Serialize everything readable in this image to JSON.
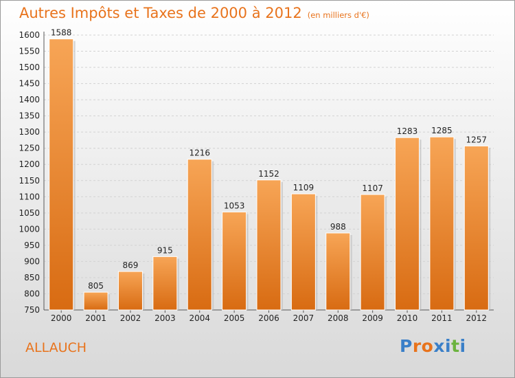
{
  "chart_data": {
    "type": "bar",
    "title": "Autres Impôts et Taxes de 2000 à 2012",
    "unit_label": "(en milliers d'€)",
    "categories": [
      "2000",
      "2001",
      "2002",
      "2003",
      "2004",
      "2005",
      "2006",
      "2007",
      "2008",
      "2009",
      "2010",
      "2011",
      "2012"
    ],
    "values": [
      1588,
      805,
      869,
      915,
      1216,
      1053,
      1152,
      1109,
      988,
      1107,
      1283,
      1285,
      1257
    ],
    "ylim": [
      750,
      1600
    ],
    "yticks": [
      750,
      800,
      850,
      900,
      950,
      1000,
      1050,
      1100,
      1150,
      1200,
      1250,
      1300,
      1350,
      1400,
      1450,
      1500,
      1550,
      1600
    ],
    "grid": true,
    "bar_color": "#f0882c"
  },
  "commune": "ALLAUCH",
  "logo": {
    "text": "Proxiti",
    "letter_colors": [
      "#3a7fc8",
      "#e8731c",
      "#e8731c",
      "#3a7fc8",
      "#3a7fc8",
      "#6cb33f",
      "#3a7fc8"
    ]
  }
}
